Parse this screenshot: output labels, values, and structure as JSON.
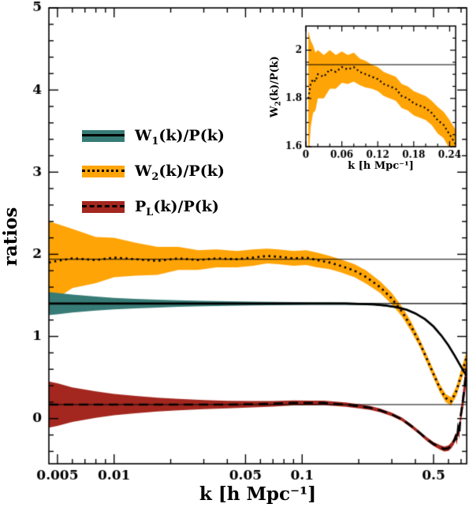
{
  "chart_data": {
    "type": "line",
    "main": {
      "xlabel": "k [h Mpc⁻¹]",
      "ylabel": "ratios",
      "xscale": "log",
      "xlim": [
        0.0045,
        0.75
      ],
      "ylim": [
        -0.55,
        5
      ],
      "grid": false,
      "xticks": {
        "major": [
          0.005,
          0.01,
          0.05,
          0.1,
          0.5
        ],
        "labels": [
          "0.005",
          "0.01",
          "0.05",
          "0.1",
          "0.5"
        ]
      },
      "yticks": {
        "major": [
          0,
          1,
          2,
          3,
          4,
          5
        ],
        "labels": [
          "0",
          "1",
          "2",
          "3",
          "4",
          "5"
        ],
        "minor_step": 0.2
      },
      "reference_lines": [
        1.94,
        1.4,
        0.17
      ],
      "series": [
        {
          "label": "W_1(k)/P(k)",
          "color": "#377b76",
          "line": "solid",
          "k": [
            0.0045,
            0.005,
            0.006,
            0.008,
            0.01,
            0.013,
            0.017,
            0.022,
            0.03,
            0.04,
            0.055,
            0.07,
            0.09,
            0.11,
            0.14,
            0.17,
            0.2,
            0.24,
            0.28,
            0.32,
            0.36,
            0.4,
            0.45,
            0.5,
            0.55,
            0.6,
            0.65,
            0.7,
            0.75
          ],
          "v": [
            1.4,
            1.4,
            1.4,
            1.4,
            1.4,
            1.4,
            1.4,
            1.4,
            1.4,
            1.4,
            1.4,
            1.4,
            1.4,
            1.4,
            1.4,
            1.4,
            1.395,
            1.39,
            1.375,
            1.355,
            1.325,
            1.28,
            1.21,
            1.12,
            1.01,
            0.89,
            0.76,
            0.63,
            0.52
          ],
          "e": [
            0.14,
            0.13,
            0.11,
            0.085,
            0.07,
            0.058,
            0.048,
            0.04,
            0.032,
            0.027,
            0.023,
            0.02,
            0.018,
            0.016,
            0.015,
            0.014,
            0.013,
            0.012,
            0.012,
            0.011,
            0.011,
            0.011,
            0.01,
            0.01,
            0.01,
            0.012,
            0.013,
            0.015,
            0.018
          ]
        },
        {
          "label": "W_2(k)/P(k)",
          "color": "#ffa407",
          "line": "dotted",
          "k": [
            0.0045,
            0.005,
            0.006,
            0.008,
            0.01,
            0.013,
            0.017,
            0.022,
            0.028,
            0.035,
            0.045,
            0.055,
            0.065,
            0.075,
            0.09,
            0.105,
            0.12,
            0.14,
            0.16,
            0.19,
            0.22,
            0.26,
            0.3,
            0.34,
            0.38,
            0.42,
            0.46,
            0.5,
            0.54,
            0.58,
            0.62,
            0.66,
            0.7,
            0.75
          ],
          "v": [
            1.9,
            1.92,
            1.95,
            1.93,
            1.96,
            1.94,
            1.92,
            1.95,
            1.93,
            1.95,
            1.94,
            1.96,
            1.98,
            1.97,
            1.95,
            1.96,
            1.93,
            1.9,
            1.86,
            1.8,
            1.72,
            1.6,
            1.46,
            1.3,
            1.12,
            0.93,
            0.73,
            0.54,
            0.37,
            0.25,
            0.21,
            0.33,
            0.52,
            0.75
          ],
          "e": [
            0.5,
            0.45,
            0.36,
            0.28,
            0.24,
            0.2,
            0.17,
            0.14,
            0.12,
            0.11,
            0.1,
            0.1,
            0.09,
            0.09,
            0.09,
            0.09,
            0.09,
            0.08,
            0.08,
            0.08,
            0.08,
            0.07,
            0.07,
            0.06,
            0.06,
            0.05,
            0.05,
            0.05,
            0.05,
            0.05,
            0.05,
            0.06,
            0.07,
            0.08
          ]
        },
        {
          "label": "P_L(k)/P(k)",
          "color": "#a3271f",
          "line": "dashed",
          "k": [
            0.0045,
            0.005,
            0.006,
            0.008,
            0.01,
            0.013,
            0.017,
            0.022,
            0.03,
            0.04,
            0.055,
            0.07,
            0.09,
            0.11,
            0.13,
            0.15,
            0.17,
            0.2,
            0.23,
            0.26,
            0.3,
            0.34,
            0.38,
            0.42,
            0.46,
            0.5,
            0.54,
            0.57,
            0.6,
            0.62,
            0.64,
            0.655,
            0.665,
            0.675,
            0.685,
            0.695,
            0.71,
            0.73,
            0.75
          ],
          "v": [
            0.17,
            0.17,
            0.17,
            0.17,
            0.17,
            0.17,
            0.17,
            0.17,
            0.17,
            0.17,
            0.175,
            0.18,
            0.19,
            0.19,
            0.19,
            0.18,
            0.17,
            0.15,
            0.13,
            0.1,
            0.05,
            -0.01,
            -0.09,
            -0.17,
            -0.25,
            -0.31,
            -0.35,
            -0.37,
            -0.36,
            -0.33,
            -0.28,
            -0.22,
            -0.27,
            -0.12,
            -0.18,
            0.02,
            0.15,
            0.38,
            0.6
          ],
          "e": [
            0.28,
            0.26,
            0.21,
            0.16,
            0.13,
            0.105,
            0.085,
            0.07,
            0.055,
            0.045,
            0.038,
            0.033,
            0.03,
            0.029,
            0.028,
            0.027,
            0.026,
            0.025,
            0.024,
            0.023,
            0.022,
            0.022,
            0.022,
            0.022,
            0.023,
            0.025,
            0.027,
            0.03,
            0.033,
            0.036,
            0.04,
            0.045,
            0.05,
            0.06,
            0.07,
            0.08,
            0.1,
            0.13,
            0.16
          ]
        }
      ]
    },
    "inset": {
      "xlabel": "k [h Mpc⁻¹]",
      "ylabel": "W_2(k)/P(k)",
      "xscale": "linear",
      "xlim": [
        0,
        0.25
      ],
      "ylim": [
        1.6,
        2.1
      ],
      "xticks": {
        "major": [
          0,
          0.06,
          0.12,
          0.18,
          0.24
        ],
        "labels": [
          "0",
          "0.06",
          "0.12",
          "0.18",
          "0.24"
        ],
        "minor_step": 0.02
      },
      "yticks": {
        "major": [
          1.6,
          1.8,
          2.0
        ],
        "labels": [
          "1.6",
          "1.8",
          "2"
        ],
        "minor_step": 0.05
      },
      "reference_line": 1.94,
      "series": [
        {
          "label": "W_2(k)/P(k)",
          "color": "#ffa407",
          "line": "dotted",
          "k": [
            0.004,
            0.008,
            0.012,
            0.016,
            0.02,
            0.03,
            0.04,
            0.05,
            0.06,
            0.07,
            0.08,
            0.09,
            0.1,
            0.11,
            0.12,
            0.13,
            0.14,
            0.15,
            0.16,
            0.17,
            0.18,
            0.19,
            0.2,
            0.21,
            0.22,
            0.23,
            0.24,
            0.25
          ],
          "v": [
            1.8,
            1.86,
            1.88,
            1.87,
            1.9,
            1.89,
            1.92,
            1.91,
            1.93,
            1.92,
            1.93,
            1.91,
            1.9,
            1.89,
            1.88,
            1.86,
            1.85,
            1.84,
            1.81,
            1.8,
            1.78,
            1.77,
            1.76,
            1.74,
            1.71,
            1.69,
            1.65,
            1.61
          ],
          "e": [
            0.28,
            0.18,
            0.14,
            0.12,
            0.1,
            0.09,
            0.08,
            0.07,
            0.065,
            0.06,
            0.06,
            0.055,
            0.055,
            0.05,
            0.05,
            0.05,
            0.05,
            0.05,
            0.05,
            0.05,
            0.05,
            0.05,
            0.05,
            0.05,
            0.055,
            0.055,
            0.06,
            0.06
          ]
        }
      ]
    }
  }
}
